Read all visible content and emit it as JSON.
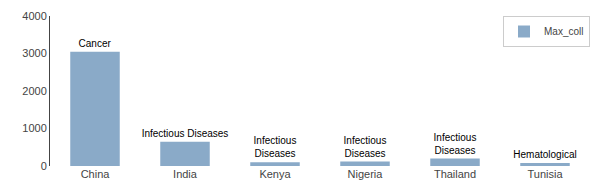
{
  "chart_data": {
    "type": "bar",
    "categories": [
      "China",
      "India",
      "Kenya",
      "Nigeria",
      "Thailand",
      "Tunisia"
    ],
    "series": [
      {
        "name": "Max_coll",
        "color": "#8aaac8",
        "values": [
          3050,
          650,
          100,
          120,
          200,
          80
        ]
      }
    ],
    "annotations": [
      "Cancer",
      "Infectious Diseases",
      "Infectious\nDiseases",
      "Infectious\nDiseases",
      "Infectious\nDiseases",
      "Hematological"
    ],
    "ylim": [
      0,
      4000
    ],
    "yticks": [
      0,
      1000,
      2000,
      3000,
      4000
    ],
    "grid": false,
    "legend": "upper right"
  }
}
